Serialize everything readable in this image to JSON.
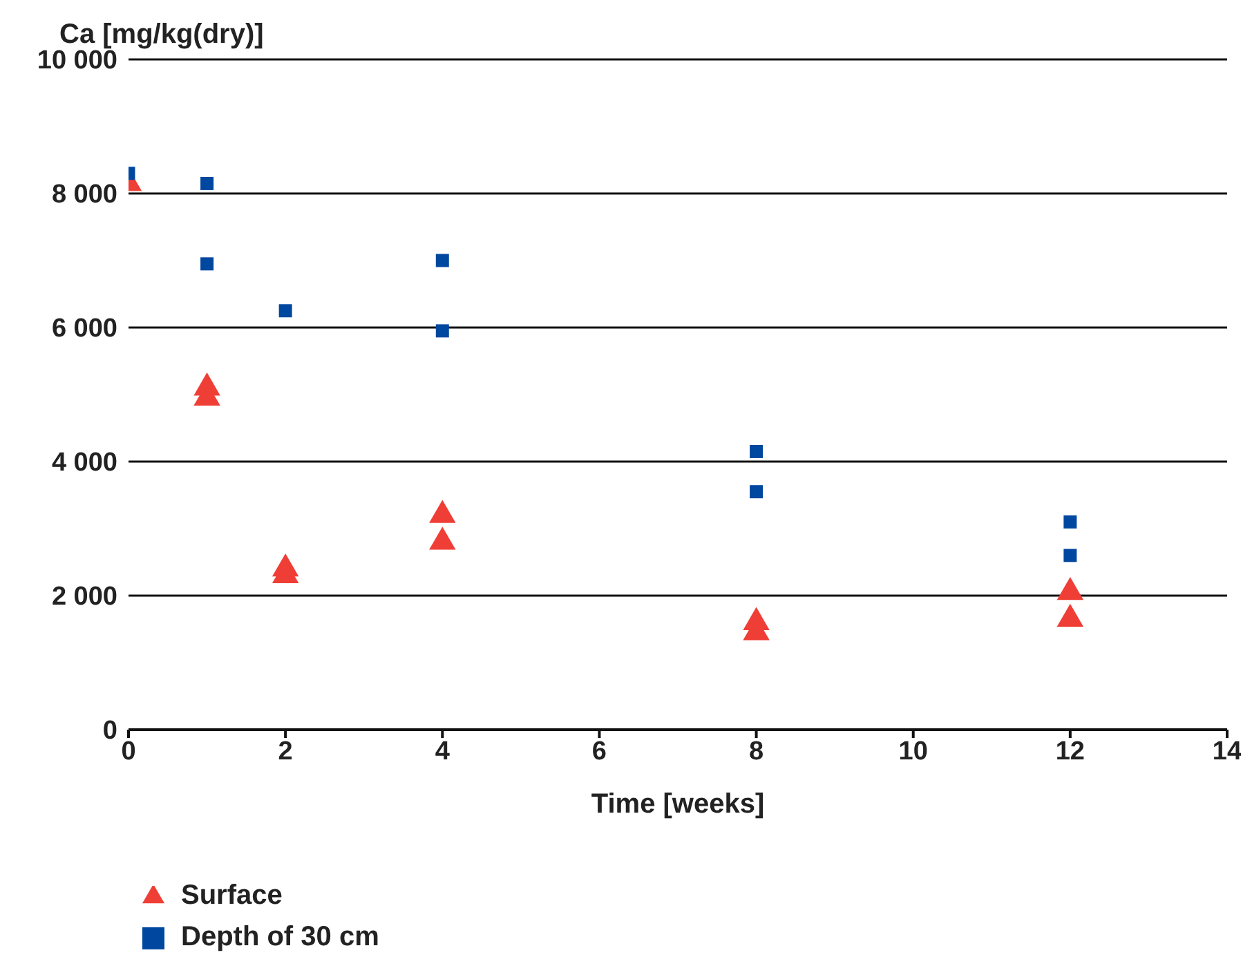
{
  "chart_data": {
    "type": "scatter",
    "ylabel": "Ca [mg/kg(dry)]",
    "xlabel": "Time [weeks]",
    "xlim": [
      0,
      14
    ],
    "xticks": [
      0,
      2,
      4,
      6,
      8,
      10,
      12,
      14
    ],
    "ylim": [
      0,
      10000
    ],
    "yticks": [
      {
        "value": 0,
        "label": "0"
      },
      {
        "value": 2000,
        "label": "2 000"
      },
      {
        "value": 4000,
        "label": "4 000"
      },
      {
        "value": 6000,
        "label": "6 000"
      },
      {
        "value": 8000,
        "label": "8 000"
      },
      {
        "value": 10000,
        "label": "10 000"
      }
    ],
    "grid": "y",
    "legend": "bottom left",
    "series": [
      {
        "name": "Surface",
        "color": "#ef3e36",
        "marker": "triangle",
        "x": [
          0,
          1,
          1,
          2,
          2,
          4,
          4,
          8,
          8,
          12,
          12
        ],
        "values": [
          8150,
          5100,
          4950,
          2400,
          2300,
          3200,
          2800,
          1600,
          1450,
          2050,
          1650
        ]
      },
      {
        "name": "Depth of 30 cm",
        "color": "#0047a0",
        "marker": "square",
        "x": [
          0,
          1,
          1,
          2,
          4,
          4,
          8,
          8,
          12,
          12
        ],
        "values": [
          8300,
          8150,
          6950,
          6250,
          7000,
          5950,
          4150,
          3550,
          3100,
          2600
        ]
      }
    ]
  }
}
